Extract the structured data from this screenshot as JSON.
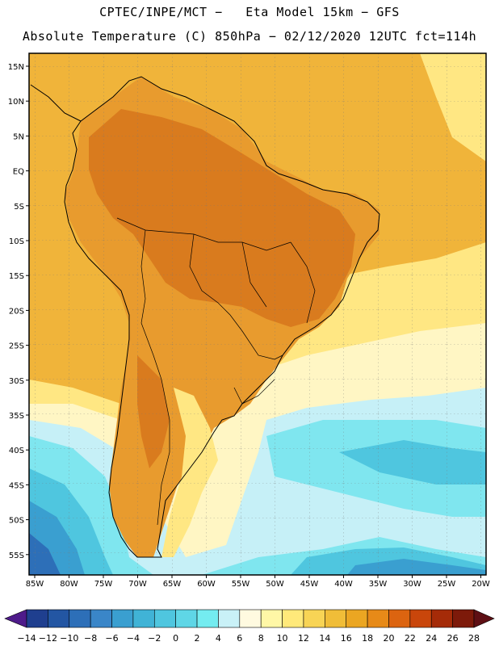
{
  "header": {
    "line1": "CPTEC/INPE/MCT −   Eta Model 15km − GFS",
    "line2": "Absolute Temperature (C) 850hPa − 02/12/2020 12UTC fct=114h"
  },
  "axes": {
    "lat_labels": [
      "15N",
      "10N",
      "5N",
      "EQ",
      "5S",
      "10S",
      "15S",
      "20S",
      "25S",
      "30S",
      "35S",
      "40S",
      "45S",
      "50S",
      "55S"
    ],
    "lon_labels": [
      "85W",
      "80W",
      "75W",
      "70W",
      "65W",
      "60W",
      "55W",
      "50W",
      "45W",
      "40W",
      "35W",
      "30W",
      "25W",
      "20W"
    ]
  },
  "colorbar": {
    "labels": [
      "−14",
      "−12",
      "−10",
      "−8",
      "−6",
      "−4",
      "−2",
      "0",
      "2",
      "4",
      "6",
      "8",
      "10",
      "12",
      "14",
      "16",
      "18",
      "20",
      "22",
      "24",
      "26",
      "28"
    ],
    "colors": [
      "#4e1b8a",
      "#1f3f8f",
      "#2356a3",
      "#2d6fb8",
      "#3a86c8",
      "#3a9fd0",
      "#40b3d6",
      "#4fc6df",
      "#5fd6e6",
      "#74ecf0",
      "#c9f1f7",
      "#fffae0",
      "#fff7a6",
      "#ffe97a",
      "#f8d455",
      "#f0bd38",
      "#eba622",
      "#e78a18",
      "#dc6410",
      "#c9460b",
      "#a52b08",
      "#7d1a0a",
      "#5e0f14"
    ]
  },
  "colors": {
    "ocean_warm": "#f0b43a",
    "land_warm": "#e89b2e",
    "land_hot": "#d97b1e",
    "ocean_mild": "#ffe783",
    "ocean_cool": "#fff6c4",
    "cold1": "#c6f0f7",
    "cold2": "#7fe6ef",
    "cold3": "#4fc6df",
    "cold4": "#3a9fd0",
    "cold5": "#2d6fb8"
  }
}
